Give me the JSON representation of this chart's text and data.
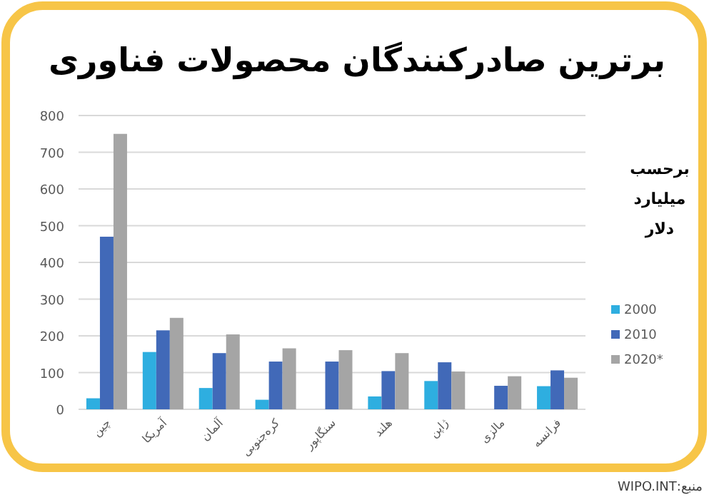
{
  "chart_data": {
    "type": "bar",
    "title": "برترین صادرکنندگان محصولات فناوری",
    "categories": [
      "چین",
      "آمریکا",
      "آلمان",
      "کره‌جنوبی",
      "سنگاپور",
      "هلند",
      "ژاپن",
      "مالزی",
      "فرانسه"
    ],
    "series": [
      {
        "name": "2000",
        "color": "#2eaee0",
        "values": [
          30,
          156,
          58,
          26,
          null,
          35,
          77,
          null,
          63
        ]
      },
      {
        "name": "2010",
        "color": "#4169b8",
        "values": [
          470,
          215,
          153,
          130,
          130,
          104,
          128,
          64,
          106
        ]
      },
      {
        "name": "2020*",
        "color": "#a5a5a5",
        "values": [
          750,
          249,
          204,
          166,
          161,
          153,
          103,
          90,
          86
        ]
      }
    ],
    "ylim": [
      0,
      800
    ],
    "yticks": [
      0,
      100,
      200,
      300,
      400,
      500,
      600,
      700,
      800
    ],
    "grid": "y",
    "legend": "right",
    "legend_title": "برحسب میلیارد دلار",
    "annotations": [
      "منبع:WIPO.INT"
    ]
  }
}
